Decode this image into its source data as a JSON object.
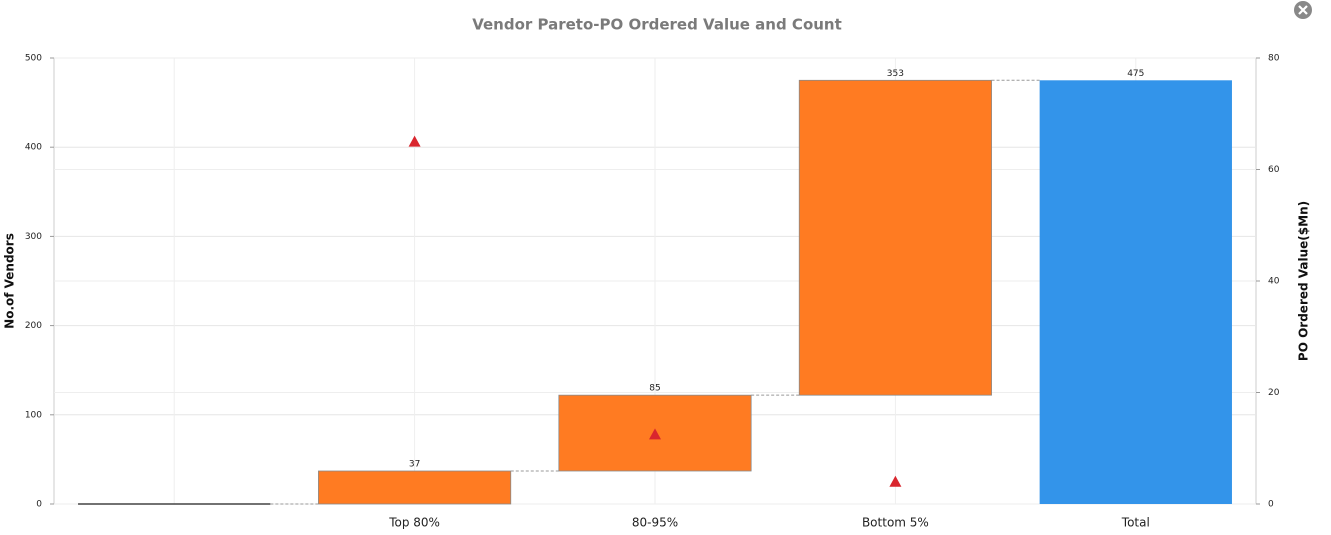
{
  "chart_data": {
    "type": "waterfall",
    "title": "Vendor Pareto-PO Ordered Value and Count",
    "ylabel": "No.of Vendors",
    "y2label": "PO Ordered Value($Mn)",
    "categories": [
      null,
      "Top 80%",
      "80-95%",
      "Bottom 5%",
      "Total"
    ],
    "values": [
      0,
      37,
      85,
      353,
      475
    ],
    "value_labels": [
      null,
      "37",
      "85",
      "353",
      "475"
    ],
    "is_total": [
      false,
      false,
      false,
      false,
      true
    ],
    "color": "#ff7b22",
    "total_color": "#3394ea",
    "markers": {
      "axis": "y2",
      "marker": "triangle",
      "color": "#d9262e",
      "values": [
        null,
        65,
        12.5,
        4,
        null
      ]
    },
    "ylim": [
      0,
      500
    ],
    "yticks": [
      0,
      100,
      200,
      300,
      400,
      500
    ],
    "y2lim": [
      0,
      80
    ],
    "y2ticks": [
      0,
      20,
      40,
      60,
      80
    ],
    "grid": true
  }
}
